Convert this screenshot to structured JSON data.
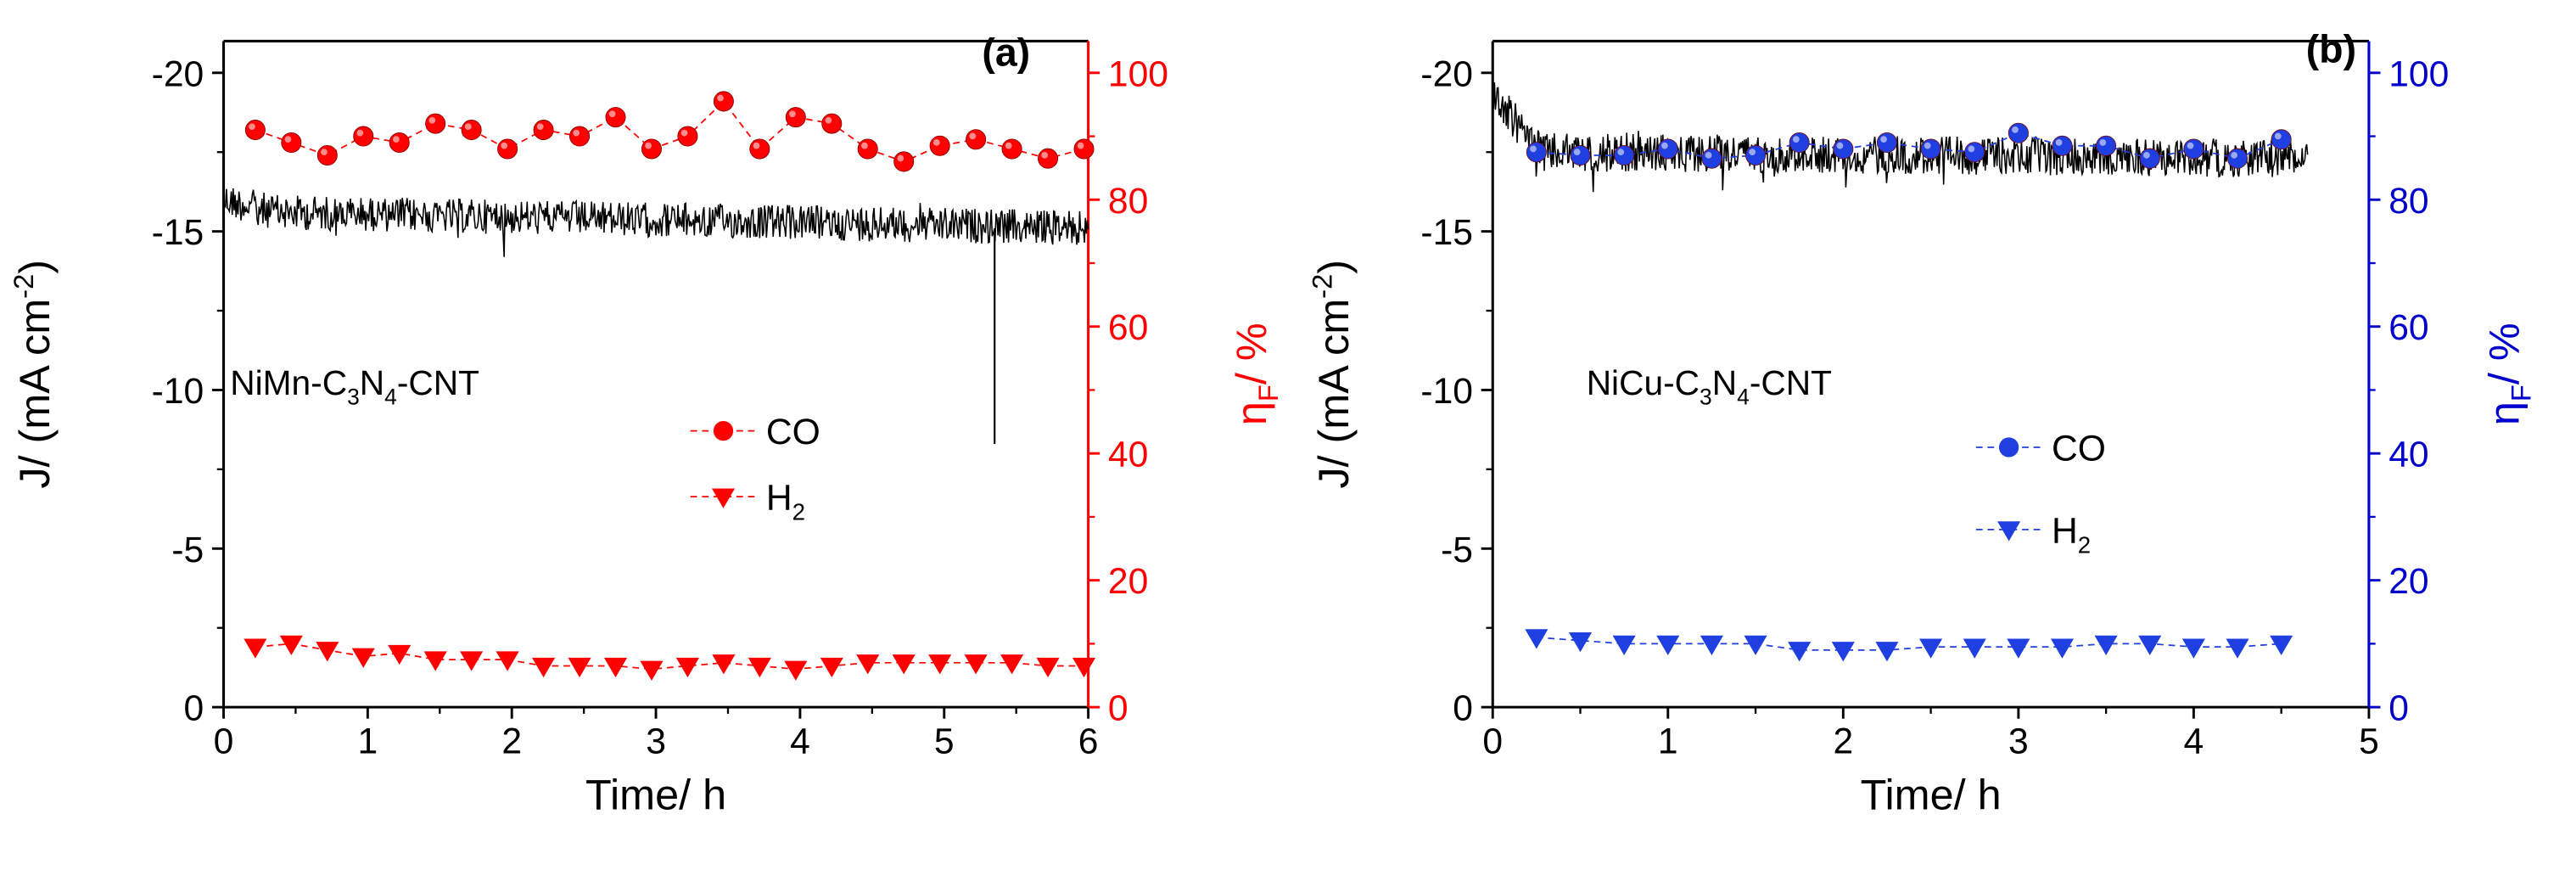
{
  "chart_data": [
    {
      "panel_label": "(a)",
      "type": "line",
      "sample_label": "NiMn-C3N4-CNT",
      "xlabel": "Time/ h",
      "ylabel": "J/ (mA cm-2)",
      "y2label": "ηF/ %",
      "xlim": [
        0,
        6
      ],
      "ylim": [
        0,
        -21
      ],
      "y2lim": [
        0,
        105
      ],
      "x_ticks": [
        "0",
        "1",
        "2",
        "3",
        "4",
        "5",
        "6"
      ],
      "y_ticks": [
        "0",
        "-5",
        "-10",
        "-15",
        "-20"
      ],
      "y2_ticks": [
        "0",
        "20",
        "40",
        "60",
        "80",
        "100"
      ],
      "y2_color": "#ff0000",
      "marker_color": "#ff0000",
      "grid": false,
      "legend_position": "center-right",
      "current_series": {
        "name": "J",
        "axis": "left",
        "color": "#000000",
        "x_end": 6,
        "start": -16.0,
        "mid": -15.6,
        "end": -15.1,
        "noise": 0.55,
        "spikes": [
          {
            "x": 5.35,
            "y": -8.3
          }
        ]
      },
      "series": [
        {
          "name": "CO",
          "marker": "circle",
          "axis": "right",
          "x": [
            0.22,
            0.47,
            0.72,
            0.97,
            1.22,
            1.47,
            1.72,
            1.97,
            2.22,
            2.47,
            2.72,
            2.97,
            3.22,
            3.47,
            3.72,
            3.97,
            4.22,
            4.47,
            4.72,
            4.97,
            5.22,
            5.47,
            5.72,
            5.97
          ],
          "values": [
            91,
            89,
            87,
            90,
            89,
            92,
            91,
            88,
            91,
            90,
            93,
            88,
            90,
            95.5,
            88,
            93,
            92,
            88,
            86,
            88.5,
            89.5,
            88,
            86.5,
            88
          ]
        },
        {
          "name": "H2",
          "marker": "triangle-down",
          "axis": "right",
          "x": [
            0.22,
            0.47,
            0.72,
            0.97,
            1.22,
            1.47,
            1.72,
            1.97,
            2.22,
            2.47,
            2.72,
            2.97,
            3.22,
            3.47,
            3.72,
            3.97,
            4.22,
            4.47,
            4.72,
            4.97,
            5.22,
            5.47,
            5.72,
            5.97
          ],
          "values": [
            9.5,
            10.0,
            9.0,
            8.0,
            8.5,
            7.5,
            7.5,
            7.5,
            6.5,
            6.5,
            6.5,
            6.0,
            6.5,
            7.0,
            6.5,
            6.0,
            6.5,
            7.0,
            7.0,
            7.0,
            7.0,
            7.0,
            6.5,
            6.5
          ]
        }
      ]
    },
    {
      "panel_label": "(b)",
      "type": "line",
      "sample_label": "NiCu-C3N4-CNT",
      "xlabel": "Time/ h",
      "ylabel": "J/ (mA cm-2)",
      "y2label": "ηF/ %",
      "xlim": [
        0,
        5
      ],
      "ylim": [
        0,
        -21
      ],
      "y2lim": [
        0,
        105
      ],
      "x_ticks": [
        "0",
        "1",
        "2",
        "3",
        "4",
        "5"
      ],
      "y_ticks": [
        "0",
        "-5",
        "-10",
        "-15",
        "-20"
      ],
      "y2_ticks": [
        "0",
        "20",
        "40",
        "60",
        "80",
        "100"
      ],
      "y2_color": "#0000cc",
      "marker_color": "#1f3fe0",
      "grid": false,
      "legend_position": "center-right",
      "current_series": {
        "name": "J",
        "axis": "left",
        "color": "#000000",
        "x_end": 4.65,
        "start": -19.3,
        "mid": -17.5,
        "end": -17.3,
        "noise": 0.6,
        "spikes": []
      },
      "series": [
        {
          "name": "CO",
          "marker": "circle",
          "axis": "right",
          "x": [
            0.25,
            0.5,
            0.75,
            1.0,
            1.25,
            1.5,
            1.75,
            2.0,
            2.25,
            2.5,
            2.75,
            3.0,
            3.25,
            3.5,
            3.75,
            4.0,
            4.25,
            4.5
          ],
          "values": [
            87.5,
            87,
            87,
            88,
            86.5,
            87,
            89,
            88,
            89,
            88,
            87.5,
            90.5,
            88.5,
            88.5,
            86.5,
            88,
            86.5,
            89.5
          ]
        },
        {
          "name": "H2",
          "marker": "triangle-down",
          "axis": "right",
          "x": [
            0.25,
            0.5,
            0.75,
            1.0,
            1.25,
            1.5,
            1.75,
            2.0,
            2.25,
            2.5,
            2.75,
            3.0,
            3.25,
            3.5,
            3.75,
            4.0,
            4.25,
            4.5
          ],
          "values": [
            11,
            10.5,
            10,
            10,
            10,
            10,
            9,
            9,
            9,
            9.5,
            9.5,
            9.5,
            9.5,
            10,
            10,
            9.5,
            9.5,
            10
          ]
        }
      ]
    }
  ]
}
